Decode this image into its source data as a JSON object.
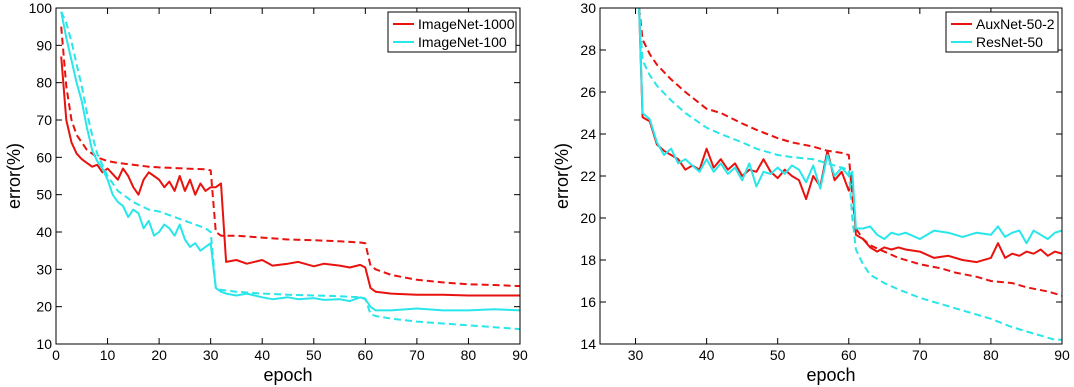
{
  "colors": {
    "red": "#e8120e",
    "cyan": "#28e6ea"
  },
  "line_styles": {
    "val": "solid",
    "train": "dashed"
  },
  "chart_data": [
    {
      "type": "line",
      "xlabel": "epoch",
      "ylabel": "error(%)",
      "xlim": [
        0,
        90
      ],
      "ylim": [
        10,
        100
      ],
      "xticks": [
        0,
        10,
        20,
        30,
        40,
        50,
        60,
        70,
        80,
        90
      ],
      "yticks": [
        10,
        20,
        30,
        40,
        50,
        60,
        70,
        80,
        90,
        100
      ],
      "legend_position": "top-right",
      "legend": [
        {
          "name": "ImageNet-1000",
          "color": "red"
        },
        {
          "name": "ImageNet-100",
          "color": "cyan"
        }
      ],
      "series": [
        {
          "legend": "ImageNet-1000",
          "color": "red",
          "style": "dashed",
          "x": [
            1,
            2,
            3,
            4,
            5,
            6,
            7,
            8,
            10,
            12,
            15,
            18,
            20,
            25,
            29,
            30,
            31,
            32,
            35,
            40,
            45,
            50,
            55,
            59,
            60,
            61,
            62,
            65,
            70,
            75,
            80,
            85,
            90
          ],
          "y": [
            95,
            79,
            70,
            66,
            64,
            62,
            61,
            60,
            59,
            58.5,
            58,
            57.5,
            57.3,
            57,
            56.8,
            56.5,
            40,
            39,
            39,
            38.5,
            38,
            37.8,
            37.5,
            37.2,
            37,
            31,
            30,
            28.5,
            27.2,
            26.5,
            26,
            25.8,
            25.5
          ]
        },
        {
          "legend": "ImageNet-1000",
          "color": "red",
          "style": "solid",
          "x": [
            1,
            2,
            3,
            4,
            5,
            6,
            7,
            8,
            9,
            10,
            11,
            12,
            13,
            14,
            15,
            16,
            17,
            18,
            19,
            20,
            21,
            22,
            23,
            24,
            25,
            26,
            27,
            28,
            29,
            30,
            31,
            32,
            33,
            35,
            37,
            40,
            42,
            45,
            47,
            50,
            52,
            55,
            57,
            59,
            60,
            61,
            62,
            65,
            70,
            75,
            80,
            85,
            90
          ],
          "y": [
            87,
            70,
            64,
            61,
            59.5,
            58.5,
            57.5,
            58,
            56,
            57,
            55.5,
            54,
            57,
            55,
            52,
            50,
            54,
            56,
            55,
            54,
            52,
            53.5,
            51,
            55,
            51,
            54,
            50,
            53,
            51,
            52,
            52,
            53,
            32,
            32.5,
            31.5,
            32.5,
            31,
            31.5,
            32,
            30.8,
            31.5,
            31,
            30.5,
            31.2,
            30.5,
            25,
            24,
            23.5,
            23.2,
            23.2,
            23,
            23,
            23
          ]
        },
        {
          "legend": "ImageNet-100",
          "color": "cyan",
          "style": "dashed",
          "x": [
            1,
            2,
            3,
            4,
            5,
            6,
            7,
            8,
            10,
            12,
            15,
            18,
            20,
            25,
            29,
            30,
            31,
            32,
            35,
            40,
            45,
            50,
            55,
            59,
            60,
            61,
            62,
            65,
            70,
            75,
            80,
            85,
            90
          ],
          "y": [
            99,
            96,
            91,
            85,
            79,
            72,
            66,
            61,
            55,
            51,
            48,
            46,
            45.5,
            43,
            41,
            40,
            25,
            24.5,
            24,
            23.5,
            23.2,
            23,
            22.8,
            22.5,
            22.2,
            18,
            17.5,
            16.8,
            16,
            15.5,
            15,
            14.5,
            14
          ]
        },
        {
          "legend": "ImageNet-100",
          "color": "cyan",
          "style": "solid",
          "x": [
            1,
            2,
            3,
            4,
            5,
            6,
            7,
            8,
            9,
            10,
            11,
            12,
            13,
            14,
            15,
            16,
            17,
            18,
            19,
            20,
            21,
            22,
            23,
            24,
            25,
            26,
            27,
            28,
            29,
            30,
            31,
            32,
            33,
            35,
            37,
            40,
            42,
            45,
            47,
            50,
            52,
            55,
            57,
            59,
            60,
            61,
            62,
            65,
            70,
            75,
            80,
            85,
            90
          ],
          "y": [
            99,
            92,
            86,
            80,
            75,
            68,
            62,
            59,
            57,
            54,
            50,
            48,
            47,
            44,
            46,
            45,
            41,
            43,
            39,
            40,
            42,
            41,
            39,
            42,
            38,
            36,
            37,
            35,
            36,
            37,
            25,
            24,
            23.5,
            23,
            23.5,
            22.5,
            22,
            22.5,
            22,
            22.3,
            21.8,
            22,
            21.5,
            22.5,
            22,
            20,
            19,
            19,
            19.5,
            19,
            19,
            19.3,
            19
          ]
        }
      ]
    },
    {
      "type": "line",
      "xlabel": "epoch",
      "ylabel": "error(%)",
      "xlim": [
        25,
        90
      ],
      "ylim": [
        14,
        30
      ],
      "xticks": [
        30,
        40,
        50,
        60,
        70,
        80,
        90
      ],
      "yticks": [
        14,
        16,
        18,
        20,
        22,
        24,
        26,
        28,
        30
      ],
      "legend_position": "top-right",
      "legend": [
        {
          "name": "AuxNet-50-2",
          "color": "red"
        },
        {
          "name": "ResNet-50",
          "color": "cyan"
        }
      ],
      "series": [
        {
          "legend": "AuxNet-50-2",
          "color": "red",
          "style": "dashed",
          "x": [
            30.5,
            31,
            32,
            33,
            35,
            37,
            40,
            42,
            45,
            47,
            50,
            52,
            55,
            57,
            59,
            60,
            60.5,
            61,
            62,
            63,
            65,
            67,
            70,
            73,
            75,
            78,
            80,
            83,
            85,
            88,
            90
          ],
          "y": [
            30,
            28.5,
            27.8,
            27.3,
            26.6,
            26,
            25.2,
            25,
            24.5,
            24.2,
            23.8,
            23.6,
            23.4,
            23.2,
            23.1,
            23,
            21,
            19.5,
            19,
            18.7,
            18.4,
            18.1,
            17.8,
            17.6,
            17.4,
            17.2,
            17,
            16.9,
            16.7,
            16.5,
            16.3
          ]
        },
        {
          "legend": "AuxNet-50-2",
          "color": "red",
          "style": "solid",
          "x": [
            30.5,
            31,
            32,
            33,
            34,
            35,
            36,
            37,
            38,
            39,
            40,
            41,
            42,
            43,
            44,
            45,
            46,
            47,
            48,
            49,
            50,
            51,
            52,
            53,
            54,
            55,
            56,
            57,
            58,
            59,
            60,
            60.5,
            61,
            62,
            63,
            64,
            65,
            66,
            67,
            68,
            70,
            72,
            74,
            76,
            78,
            80,
            81,
            82,
            83,
            84,
            85,
            86,
            87,
            88,
            89,
            90
          ],
          "y": [
            30,
            24.8,
            24.6,
            23.5,
            23.2,
            23,
            22.8,
            22.3,
            22.5,
            22.3,
            23.3,
            22.4,
            22.8,
            22.3,
            22.6,
            22,
            22.3,
            22.2,
            22.8,
            22.2,
            21.9,
            22.3,
            22,
            21.8,
            20.9,
            22,
            21.5,
            23.2,
            21.8,
            22.2,
            21.3,
            22,
            19.2,
            19,
            18.6,
            18.4,
            18.6,
            18.5,
            18.6,
            18.5,
            18.4,
            18.1,
            18.2,
            18,
            17.9,
            18.1,
            18.8,
            18.1,
            18.3,
            18.2,
            18.4,
            18.3,
            18.5,
            18.2,
            18.4,
            18.3
          ]
        },
        {
          "legend": "ResNet-50",
          "color": "cyan",
          "style": "dashed",
          "x": [
            30.5,
            31,
            32,
            33,
            35,
            37,
            40,
            42,
            45,
            47,
            50,
            52,
            55,
            57,
            59,
            60,
            60.5,
            61,
            62,
            63,
            65,
            67,
            70,
            73,
            75,
            78,
            80,
            83,
            85,
            88,
            89,
            90
          ],
          "y": [
            30,
            27.5,
            26.8,
            26.3,
            25.6,
            25,
            24.3,
            24,
            23.6,
            23.3,
            23,
            22.9,
            22.8,
            22.6,
            22.4,
            22.3,
            20,
            18.5,
            17.8,
            17.3,
            16.9,
            16.6,
            16.2,
            15.9,
            15.7,
            15.4,
            15.2,
            14.8,
            14.6,
            14.3,
            14.2,
            14.2
          ]
        },
        {
          "legend": "ResNet-50",
          "color": "cyan",
          "style": "solid",
          "x": [
            30.5,
            31,
            32,
            33,
            34,
            35,
            36,
            37,
            38,
            39,
            40,
            41,
            42,
            43,
            44,
            45,
            46,
            47,
            48,
            49,
            50,
            51,
            52,
            53,
            54,
            55,
            56,
            57,
            58,
            59,
            60,
            60.5,
            61,
            62,
            63,
            64,
            65,
            66,
            67,
            68,
            70,
            72,
            74,
            76,
            78,
            80,
            81,
            82,
            83,
            84,
            85,
            86,
            87,
            88,
            89,
            90
          ],
          "y": [
            30,
            25,
            24.7,
            23.6,
            23,
            23.3,
            22.6,
            22.8,
            22.5,
            22.2,
            22.8,
            22.2,
            22.6,
            22.1,
            22.4,
            21.8,
            22.6,
            21.5,
            22.2,
            22.1,
            22.4,
            22.1,
            22.5,
            22.3,
            21.7,
            22.5,
            21.4,
            23,
            22,
            22.4,
            22,
            22.2,
            19.5,
            19.5,
            19.6,
            19.2,
            19,
            19.3,
            19.2,
            19.3,
            19,
            19.4,
            19.3,
            19.1,
            19.3,
            19.2,
            19.6,
            19.1,
            19.3,
            19.4,
            18.8,
            19.4,
            19.2,
            19,
            19.3,
            19.4
          ]
        }
      ]
    }
  ]
}
